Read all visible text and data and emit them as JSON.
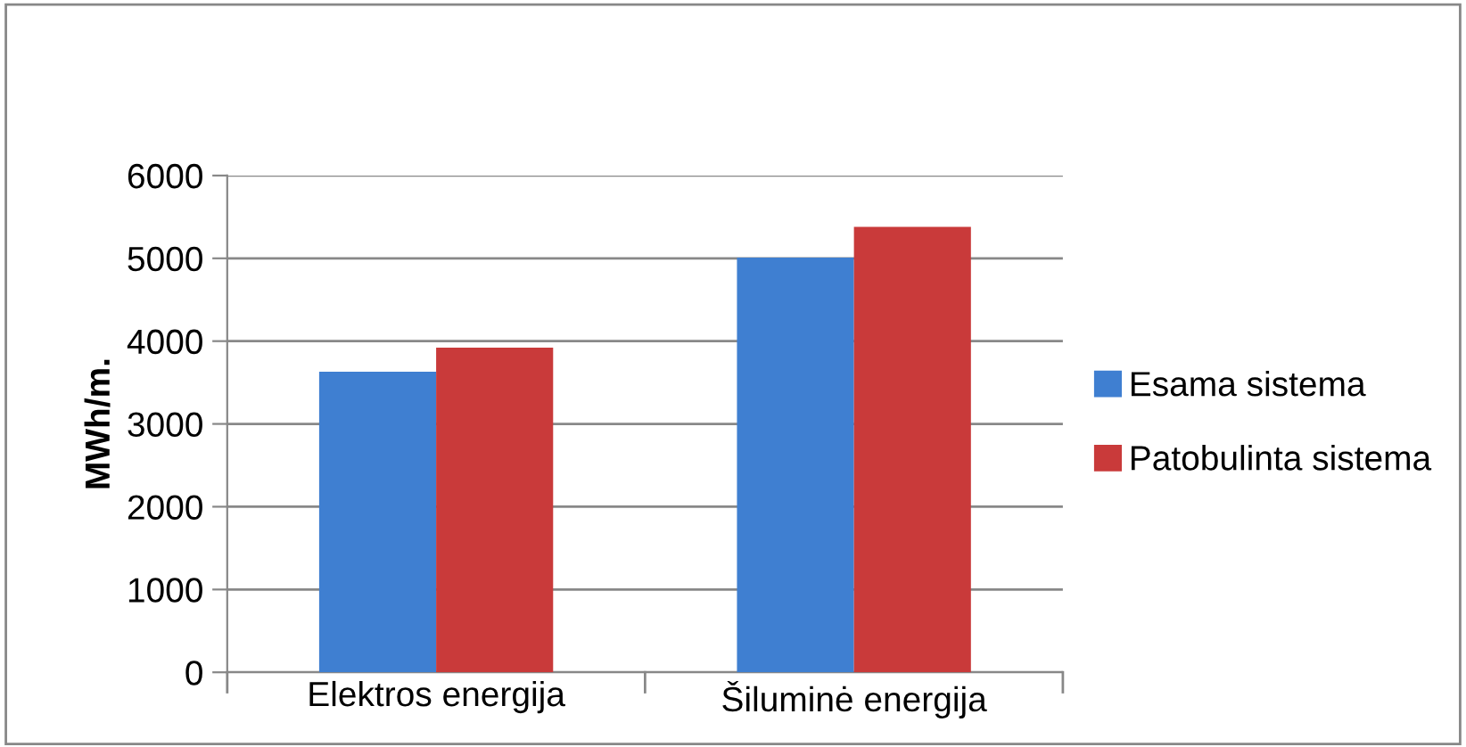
{
  "chart_data": {
    "type": "bar",
    "categories": [
      "Elektros energija",
      "Šiluminė energija"
    ],
    "series": [
      {
        "name": "Esama sistema",
        "color": "#3f7fd1",
        "values": [
          3630,
          5010
        ]
      },
      {
        "name": "Patobulinta sistema",
        "color": "#c93a3a",
        "values": [
          3920,
          5380
        ]
      }
    ],
    "ylabel": "MWh/m.",
    "ylim": [
      0,
      6000
    ],
    "yticks": [
      0,
      1000,
      2000,
      3000,
      4000,
      5000,
      6000
    ],
    "grid": "y",
    "legend": "right"
  }
}
